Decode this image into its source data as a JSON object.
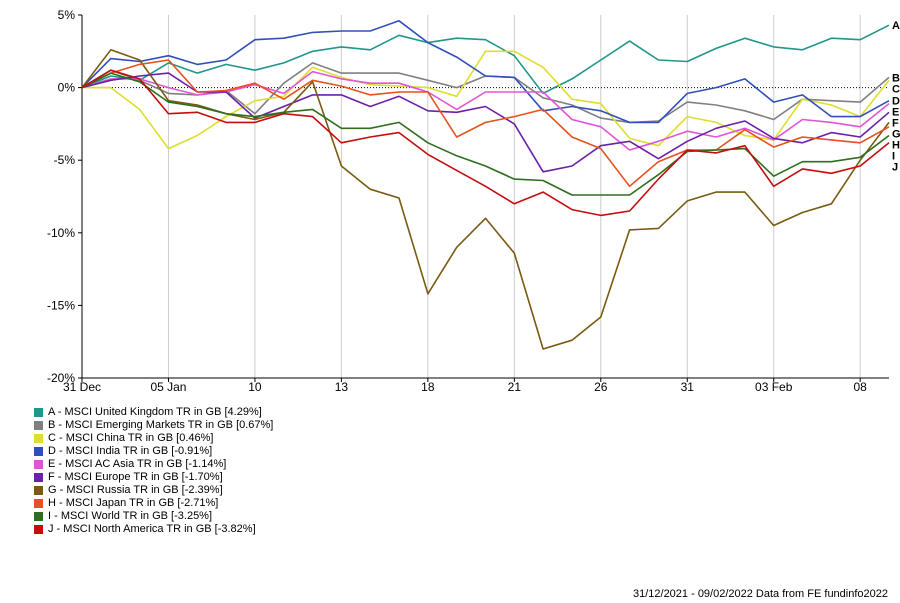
{
  "chart_data": {
    "type": "line",
    "x_ticks": [
      "31 Dec",
      "05 Jan",
      "10",
      "13",
      "18",
      "21",
      "26",
      "31",
      "03 Feb",
      "08"
    ],
    "y_ticks": [
      "5%",
      "0%",
      "-5%",
      "-10%",
      "-15%",
      "-20%"
    ],
    "y_tick_values": [
      5,
      0,
      -5,
      -10,
      -15,
      -20
    ],
    "ylim": [
      -20,
      5
    ],
    "reference_line": 0,
    "grid": "vertical",
    "legend_position": "bottom-left",
    "series": [
      {
        "id": "A",
        "name": "A - MSCI United Kingdom TR in GB [4.29%]",
        "color": "#21968a",
        "values": [
          0,
          0.8,
          0.5,
          1.7,
          1.0,
          1.6,
          1.2,
          1.7,
          2.5,
          2.8,
          2.6,
          3.6,
          3.1,
          3.4,
          3.3,
          2.2,
          -0.4,
          0.6,
          1.9,
          3.2,
          1.9,
          1.8,
          2.7,
          3.4,
          2.8,
          2.6,
          3.4,
          3.3,
          4.3
        ]
      },
      {
        "id": "B",
        "name": "B - MSCI Emerging Markets TR in GB [0.67%]",
        "color": "#808080",
        "values": [
          0,
          1.2,
          0.5,
          -0.4,
          -0.5,
          -0.2,
          -1.8,
          0.3,
          1.7,
          1.0,
          1.0,
          1.0,
          0.5,
          0.0,
          0.8,
          0.7,
          -0.7,
          -1.2,
          -2.1,
          -2.4,
          -2.3,
          -1.0,
          -1.2,
          -1.6,
          -2.2,
          -0.8,
          -0.9,
          -1.0,
          0.7
        ]
      },
      {
        "id": "C",
        "name": "C - MSCI China TR in GB [0.46%]",
        "color": "#dede2e",
        "values": [
          0,
          0,
          -1.5,
          -4.2,
          -3.3,
          -2.0,
          -0.9,
          -0.6,
          1.4,
          0.7,
          0.2,
          0.1,
          0.0,
          -0.6,
          2.5,
          2.5,
          1.4,
          -0.8,
          -1.1,
          -3.5,
          -4.0,
          -2.0,
          -2.4,
          -3.3,
          -3.6,
          -0.8,
          -1.2,
          -2.0,
          0.5
        ]
      },
      {
        "id": "D",
        "name": "D - MSCI India TR in GB [-0.91%]",
        "color": "#3050b8",
        "values": [
          0,
          2.0,
          1.8,
          2.2,
          1.6,
          1.9,
          3.3,
          3.4,
          3.8,
          3.9,
          3.9,
          4.6,
          3.1,
          2.1,
          0.8,
          0.7,
          -1.6,
          -1.3,
          -1.6,
          -2.4,
          -2.4,
          -0.4,
          0.0,
          0.6,
          -1.0,
          -0.5,
          -2.0,
          -2.0,
          -0.9
        ]
      },
      {
        "id": "E",
        "name": "E - MSCI AC Asia TR in GB [-1.14%]",
        "color": "#e055d8",
        "values": [
          0,
          0.6,
          0.6,
          0.0,
          -0.5,
          -0.3,
          0.2,
          -0.4,
          1.1,
          0.6,
          0.3,
          0.3,
          -0.3,
          -1.5,
          -0.3,
          -0.3,
          -0.3,
          -2.2,
          -2.7,
          -4.3,
          -3.7,
          -3.0,
          -3.4,
          -2.8,
          -3.6,
          -2.2,
          -2.4,
          -2.7,
          -1.1
        ]
      },
      {
        "id": "F",
        "name": "F - MSCI Europe TR in GB [-1.70%]",
        "color": "#6c1fa8",
        "values": [
          0,
          0.5,
          0.8,
          1.0,
          -0.3,
          -0.3,
          -2.1,
          -1.3,
          -0.5,
          -0.5,
          -1.3,
          -0.6,
          -1.6,
          -1.7,
          -1.3,
          -2.5,
          -5.8,
          -5.4,
          -4.0,
          -3.7,
          -4.9,
          -3.7,
          -2.8,
          -2.3,
          -3.5,
          -3.8,
          -3.1,
          -3.4,
          -1.7
        ]
      },
      {
        "id": "G",
        "name": "G - MSCI Russia TR in GB [-2.39%]",
        "color": "#7a5a10",
        "values": [
          0,
          2.6,
          1.9,
          -0.9,
          -1.2,
          -1.8,
          -2.2,
          -1.7,
          0.4,
          -5.4,
          -7.0,
          -7.6,
          -14.2,
          -11.0,
          -9.0,
          -11.4,
          -18.0,
          -17.4,
          -15.8,
          -9.8,
          -9.7,
          -7.8,
          -7.2,
          -7.2,
          -9.5,
          -8.6,
          -8.0,
          -5.0,
          -2.4
        ]
      },
      {
        "id": "H",
        "name": "H - MSCI Japan TR in GB [-2.71%]",
        "color": "#e8501e",
        "values": [
          0,
          1.0,
          1.6,
          1.9,
          -0.3,
          -0.2,
          0.3,
          -0.8,
          0.5,
          0.1,
          -0.5,
          -0.3,
          -0.3,
          -3.4,
          -2.4,
          -2.0,
          -1.5,
          -3.4,
          -4.2,
          -6.8,
          -5.1,
          -4.3,
          -4.3,
          -2.9,
          -4.1,
          -3.4,
          -3.6,
          -3.8,
          -2.7
        ]
      },
      {
        "id": "I",
        "name": "I - MSCI World TR in GB [-3.25%]",
        "color": "#2f6e1e",
        "values": [
          0,
          1.0,
          0.4,
          -1.0,
          -1.3,
          -1.8,
          -2.0,
          -1.7,
          -1.5,
          -2.8,
          -2.8,
          -2.4,
          -3.8,
          -4.7,
          -5.4,
          -6.3,
          -6.4,
          -7.4,
          -7.4,
          -7.4,
          -6.0,
          -4.4,
          -4.3,
          -4.2,
          -6.1,
          -5.1,
          -5.1,
          -4.8,
          -3.3
        ]
      },
      {
        "id": "J",
        "name": "J - MSCI North America TR in GB [-3.82%]",
        "color": "#c40e0e",
        "values": [
          0,
          1.2,
          0.6,
          -1.8,
          -1.7,
          -2.4,
          -2.4,
          -1.8,
          -2.0,
          -3.8,
          -3.4,
          -3.1,
          -4.6,
          -5.7,
          -6.8,
          -8.0,
          -7.2,
          -8.4,
          -8.8,
          -8.5,
          -6.3,
          -4.3,
          -4.5,
          -4.0,
          -6.8,
          -5.6,
          -5.9,
          -5.4,
          -3.8
        ]
      }
    ]
  },
  "footer": "31/12/2021 - 09/02/2022 Data from FE fundinfo2022"
}
